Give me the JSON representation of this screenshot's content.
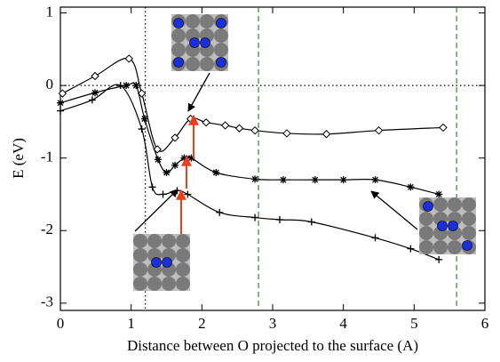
{
  "chart_data": {
    "type": "line",
    "x_label": "Distance between O projected to the surface (A)",
    "y_label": "E (eV)",
    "xlim": [
      0,
      6
    ],
    "ylim": [
      -3.1,
      1.08
    ],
    "xticks": [
      0,
      1,
      2,
      3,
      4,
      5,
      6
    ],
    "yticks": [
      -3,
      -2,
      -1,
      0,
      1
    ],
    "vlines": [
      {
        "x": 1.2,
        "color": "#000000",
        "style": "dotted"
      },
      {
        "x": 2.8,
        "color": "#2e8b2e",
        "style": "dashed"
      },
      {
        "x": 5.6,
        "color": "#2e8b2e",
        "style": "dashed"
      }
    ],
    "hlines": [
      {
        "y": 0,
        "color": "#000000",
        "style": "dotted"
      }
    ],
    "series": [
      {
        "marker": "diamond",
        "color": "#000000",
        "x": [
          0.03,
          0.49,
          0.97,
          1.15,
          1.37,
          1.62,
          1.84,
          2.06,
          2.33,
          2.53,
          2.75,
          3.2,
          3.76,
          4.5,
          5.41
        ],
        "values": [
          -0.11,
          0.13,
          0.37,
          -0.11,
          -0.88,
          -0.72,
          -0.46,
          -0.51,
          -0.55,
          -0.59,
          -0.62,
          -0.66,
          -0.67,
          -0.62,
          -0.58
        ]
      },
      {
        "marker": "asterisk",
        "color": "#000000",
        "x": [
          0.0,
          0.49,
          0.93,
          1.07,
          1.19,
          1.38,
          1.5,
          1.62,
          1.75,
          1.85,
          2.2,
          2.75,
          3.15,
          3.6,
          4.0,
          4.45,
          4.95,
          5.35
        ],
        "values": [
          -0.24,
          -0.1,
          0.0,
          0.0,
          -0.46,
          -1.02,
          -1.2,
          -1.1,
          -1.0,
          -1.0,
          -1.2,
          -1.29,
          -1.3,
          -1.3,
          -1.3,
          -1.3,
          -1.4,
          -1.5
        ]
      },
      {
        "marker": "plus",
        "color": "#000000",
        "x": [
          0.0,
          0.45,
          0.85,
          1.15,
          1.3,
          1.45,
          1.65,
          1.8,
          2.25,
          2.75,
          3.1,
          3.55,
          4.45,
          4.95,
          5.35
        ],
        "values": [
          -0.35,
          -0.2,
          0.0,
          -0.6,
          -1.4,
          -1.5,
          -1.45,
          -1.5,
          -1.75,
          -1.82,
          -1.85,
          -1.88,
          -2.1,
          -2.25,
          -2.4
        ]
      }
    ]
  }
}
